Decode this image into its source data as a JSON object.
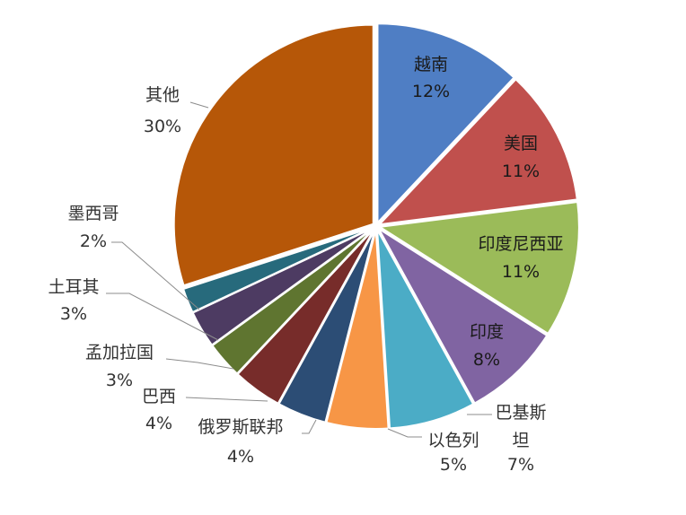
{
  "chart_data": {
    "type": "pie",
    "title": "",
    "slices": [
      {
        "label": "越南",
        "value": 12,
        "value_label": "12%",
        "color": "#4f7ec4"
      },
      {
        "label": "美国",
        "value": 11,
        "value_label": "11%",
        "color": "#c0504d"
      },
      {
        "label": "印度尼西亚",
        "value": 11,
        "value_label": "11%",
        "color": "#9bbb59"
      },
      {
        "label": "印度",
        "value": 8,
        "value_label": "8%",
        "color": "#8064a2"
      },
      {
        "label": "巴基斯坦",
        "value": 7,
        "value_label": "7%",
        "color": "#4bacc6"
      },
      {
        "label": "以色列",
        "value": 5,
        "value_label": "5%",
        "color": "#f79646"
      },
      {
        "label": "俄罗斯联邦",
        "value": 4,
        "value_label": "4%",
        "color": "#2c4d75"
      },
      {
        "label": "巴西",
        "value": 4,
        "value_label": "4%",
        "color": "#772c2a"
      },
      {
        "label": "孟加拉国",
        "value": 3,
        "value_label": "3%",
        "color": "#5f7530"
      },
      {
        "label": "土耳其",
        "value": 3,
        "value_label": "3%",
        "color": "#4d3b62"
      },
      {
        "label": "墨西哥",
        "value": 2,
        "value_label": "2%",
        "color": "#276a7c"
      },
      {
        "label": "其他",
        "value": 30,
        "value_label": "30%",
        "color": "#b65708"
      }
    ],
    "legend": "none"
  }
}
